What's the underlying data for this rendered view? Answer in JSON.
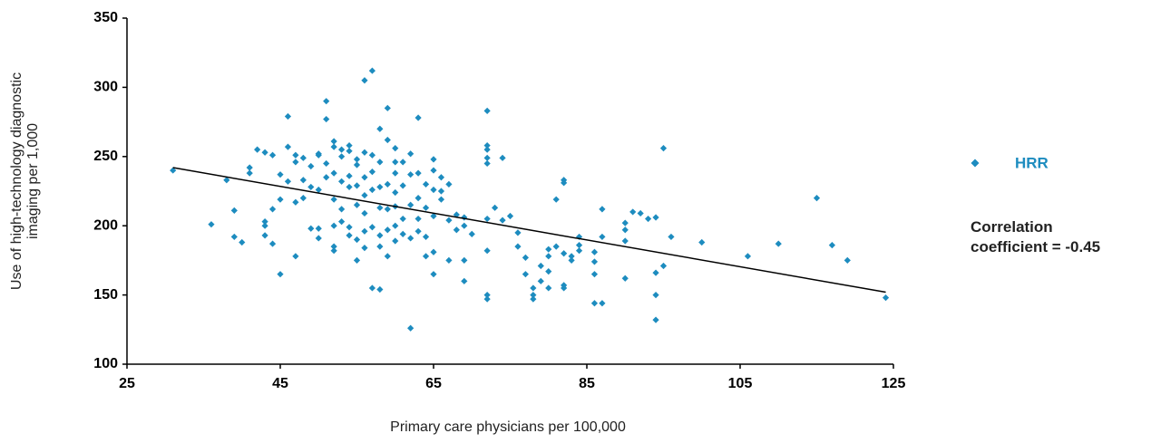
{
  "chart_data": {
    "type": "scatter",
    "x_label": "Primary care physicians per 100,000",
    "y_label": "Use of high-technology diagnostic imaging per 1,000",
    "annotation": "Correlation coefficient = -0.45",
    "xlim": [
      25,
      125
    ],
    "xticks": [
      25,
      45,
      65,
      85,
      105,
      125
    ],
    "ylim": [
      100,
      350
    ],
    "yticks": [
      100,
      150,
      200,
      250,
      300,
      350
    ],
    "grid": false,
    "series": [
      {
        "name": "HRR",
        "color": "#1d8cbf",
        "x": [
          31,
          36,
          38,
          39,
          39,
          40,
          41,
          41,
          42,
          43,
          43,
          43,
          43,
          44,
          44,
          44,
          45,
          45,
          45,
          46,
          46,
          46,
          47,
          47,
          47,
          47,
          48,
          48,
          48,
          49,
          49,
          49,
          50,
          50,
          50,
          50,
          50,
          51,
          51,
          51,
          51,
          52,
          52,
          52,
          52,
          52,
          52,
          52,
          53,
          53,
          53,
          53,
          53,
          54,
          54,
          54,
          54,
          54,
          54,
          55,
          55,
          55,
          55,
          55,
          55,
          56,
          56,
          56,
          56,
          56,
          56,
          56,
          57,
          57,
          57,
          57,
          57,
          57,
          58,
          58,
          58,
          58,
          58,
          58,
          58,
          59,
          59,
          59,
          59,
          59,
          59,
          60,
          60,
          60,
          60,
          60,
          60,
          60,
          61,
          61,
          61,
          61,
          62,
          62,
          62,
          62,
          62,
          63,
          63,
          63,
          63,
          63,
          64,
          64,
          64,
          64,
          65,
          65,
          65,
          65,
          65,
          65,
          66,
          66,
          66,
          67,
          67,
          67,
          68,
          68,
          69,
          69,
          69,
          69,
          70,
          72,
          72,
          72,
          72,
          72,
          72,
          72,
          72,
          72,
          73,
          74,
          74,
          75,
          76,
          76,
          77,
          77,
          78,
          78,
          78,
          79,
          79,
          80,
          80,
          80,
          80,
          81,
          81,
          82,
          82,
          82,
          82,
          82,
          83,
          83,
          84,
          84,
          84,
          86,
          86,
          86,
          86,
          87,
          87,
          87,
          90,
          90,
          90,
          90,
          91,
          92,
          93,
          94,
          94,
          94,
          94,
          95,
          95,
          96,
          100,
          106,
          110,
          115,
          117,
          119,
          124
        ],
        "values": [
          240,
          201,
          233,
          211,
          192,
          188,
          242,
          238,
          255,
          253,
          203,
          200,
          193,
          251,
          187,
          212,
          165,
          237,
          219,
          279,
          257,
          232,
          251,
          217,
          178,
          246,
          249,
          220,
          233,
          243,
          198,
          228,
          251,
          252,
          226,
          198,
          191,
          290,
          277,
          245,
          235,
          261,
          257,
          238,
          219,
          200,
          182,
          185,
          255,
          250,
          232,
          212,
          203,
          254,
          258,
          236,
          228,
          199,
          193,
          248,
          244,
          229,
          215,
          190,
          175,
          305,
          253,
          235,
          222,
          209,
          196,
          184,
          312,
          155,
          251,
          239,
          226,
          199,
          270,
          246,
          228,
          213,
          193,
          185,
          154,
          285,
          262,
          230,
          212,
          197,
          178,
          256,
          246,
          238,
          224,
          214,
          200,
          189,
          246,
          229,
          205,
          194,
          126,
          252,
          237,
          215,
          191,
          278,
          238,
          220,
          205,
          196,
          230,
          213,
          192,
          178,
          240,
          248,
          226,
          207,
          181,
          165,
          235,
          225,
          219,
          230,
          175,
          204,
          208,
          197,
          200,
          175,
          160,
          206,
          194,
          283,
          258,
          255,
          249,
          245,
          205,
          182,
          150,
          147,
          213,
          249,
          204,
          207,
          195,
          185,
          177,
          165,
          155,
          150,
          147,
          171,
          160,
          183,
          178,
          167,
          155,
          219,
          185,
          233,
          231,
          157,
          155,
          180,
          178,
          175,
          192,
          186,
          182,
          144,
          165,
          174,
          181,
          212,
          192,
          144,
          202,
          197,
          189,
          162,
          210,
          209,
          205,
          132,
          150,
          166,
          206,
          256,
          171,
          192,
          188,
          178,
          187,
          220,
          186,
          175,
          148
        ]
      }
    ],
    "trendline": {
      "x": [
        31,
        124
      ],
      "y": [
        242,
        152
      ]
    }
  }
}
